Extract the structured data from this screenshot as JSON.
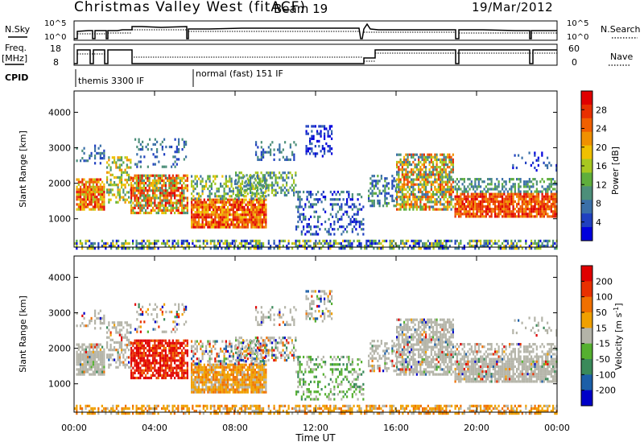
{
  "header": {
    "station": "Christmas Valley West (fitACF)",
    "beam": "Beam 19",
    "date": "19/Mar/2012"
  },
  "side_labels": {
    "nsky": "N.Sky",
    "nsearch": "N.Search",
    "freq": "Freq.",
    "freq_unit": "[MHz]",
    "nave": "Nave",
    "cpid": "CPID"
  },
  "chart_data": [
    {
      "type": "line",
      "name": "noise-panel",
      "left_axis": {
        "ticks": [
          "10^5",
          "10^0"
        ]
      },
      "right_axis": {
        "ticks": [
          "10^5",
          "10^0"
        ]
      },
      "series": [
        {
          "name": "N.Sky",
          "style": "solid"
        },
        {
          "name": "N.Search",
          "style": "dotted"
        }
      ]
    },
    {
      "type": "line",
      "name": "frequency-nave-panel",
      "left_axis": {
        "ticks": [
          "18",
          "8"
        ],
        "range": [
          8,
          18
        ]
      },
      "right_axis": {
        "ticks": [
          "60",
          "0"
        ],
        "range": [
          0,
          60
        ]
      },
      "series": [
        {
          "name": "Freq. [MHz]",
          "style": "solid"
        },
        {
          "name": "Nave",
          "style": "dotted"
        }
      ]
    },
    {
      "type": "table",
      "name": "cpid-panel",
      "segments": [
        {
          "label": "themis 3300 IF",
          "start_hour": 0
        },
        {
          "label": "normal (fast) 151 IF",
          "start_hour": 6
        }
      ]
    },
    {
      "type": "heatmap",
      "name": "power-panel",
      "ylabel": "Slant Range [km]",
      "ylim": [
        200,
        4600
      ],
      "yticks": [
        1000,
        2000,
        3000,
        4000
      ],
      "xlim": [
        0,
        24
      ],
      "colorbar": {
        "label": "Power [dB]",
        "ticks": [
          "4",
          "8",
          "12",
          "16",
          "20",
          "24",
          "28"
        ],
        "colors": [
          "#0000dd",
          "#2040c0",
          "#3a6fa8",
          "#4d8f7a",
          "#5fae3c",
          "#a8c820",
          "#f0c000",
          "#f09000",
          "#f06000",
          "#e83000",
          "#e00000"
        ]
      }
    },
    {
      "type": "heatmap",
      "name": "velocity-panel",
      "ylabel": "Slant Range [km]",
      "ylim": [
        200,
        4600
      ],
      "yticks": [
        1000,
        2000,
        3000,
        4000
      ],
      "xlim": [
        0,
        24
      ],
      "colorbar": {
        "label": "Velocity [m s",
        "label_sup": "-1",
        "label_close": "]",
        "ticks": [
          "200",
          "100",
          "50",
          "15",
          "-15",
          "-50",
          "-100",
          "-200"
        ],
        "colors": [
          "#0000c8",
          "#1c5fa8",
          "#3a8a5a",
          "#55b030",
          "#b4b4a8",
          "#f0a000",
          "#f07000",
          "#e83000",
          "#e00000"
        ]
      }
    }
  ],
  "xaxis": {
    "label": "Time UT",
    "ticks": [
      "00:00",
      "04:00",
      "08:00",
      "12:00",
      "16:00",
      "20:00",
      "00:00"
    ]
  }
}
